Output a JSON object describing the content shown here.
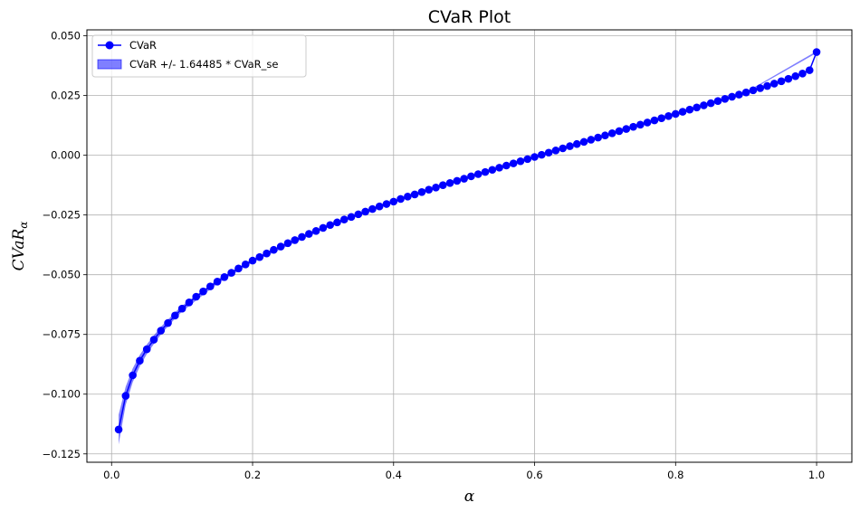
{
  "chart_data": {
    "type": "line",
    "title": "CVaR Plot",
    "xlabel": "α",
    "ylabel_main": "CVaR",
    "ylabel_sub": "α",
    "xlim": [
      -0.035,
      1.05
    ],
    "ylim": [
      -0.1285,
      0.0525
    ],
    "xticks": [
      0.0,
      0.2,
      0.4,
      0.6,
      0.8,
      1.0
    ],
    "xtick_labels": [
      "0.0",
      "0.2",
      "0.4",
      "0.6",
      "0.8",
      "1.0"
    ],
    "yticks": [
      -0.125,
      -0.1,
      -0.075,
      -0.05,
      -0.025,
      0.0,
      0.025,
      0.05
    ],
    "ytick_labels": [
      "−0.125",
      "−0.100",
      "−0.075",
      "−0.050",
      "−0.025",
      "0.000",
      "0.025",
      "0.050"
    ],
    "grid": true,
    "legend_position": "top-left",
    "series": [
      {
        "name": "CVaR",
        "color": "#0000ff",
        "marker": "circle",
        "x": [
          0.01,
          0.02,
          0.03,
          0.04,
          0.05,
          0.06,
          0.07,
          0.08,
          0.09,
          0.1,
          0.11,
          0.12,
          0.13,
          0.14,
          0.15,
          0.16,
          0.17,
          0.18,
          0.19,
          0.2,
          0.21,
          0.22,
          0.23,
          0.24,
          0.25,
          0.26,
          0.27,
          0.28,
          0.29,
          0.3,
          0.31,
          0.32,
          0.33,
          0.34,
          0.35,
          0.36,
          0.37,
          0.38,
          0.39,
          0.4,
          0.41,
          0.42,
          0.43,
          0.44,
          0.45,
          0.46,
          0.47,
          0.48,
          0.49,
          0.5,
          0.51,
          0.52,
          0.53,
          0.54,
          0.55,
          0.56,
          0.57,
          0.58,
          0.59,
          0.6,
          0.61,
          0.62,
          0.63,
          0.64,
          0.65,
          0.66,
          0.67,
          0.68,
          0.69,
          0.7,
          0.71,
          0.72,
          0.73,
          0.74,
          0.75,
          0.76,
          0.77,
          0.78,
          0.79,
          0.8,
          0.81,
          0.82,
          0.83,
          0.84,
          0.85,
          0.86,
          0.87,
          0.88,
          0.89,
          0.9,
          0.91,
          0.92,
          0.93,
          0.94,
          0.95,
          0.96,
          0.97,
          0.98,
          0.99,
          1.0
        ],
        "y": [
          -0.1148,
          -0.1007,
          -0.0921,
          -0.086,
          -0.0812,
          -0.0772,
          -0.0734,
          -0.0702,
          -0.0671,
          -0.0642,
          -0.0616,
          -0.0592,
          -0.057,
          -0.0549,
          -0.0529,
          -0.051,
          -0.0492,
          -0.0474,
          -0.0457,
          -0.0441,
          -0.0426,
          -0.0411,
          -0.0396,
          -0.0382,
          -0.0368,
          -0.0355,
          -0.0342,
          -0.0329,
          -0.0317,
          -0.0304,
          -0.0292,
          -0.0281,
          -0.0269,
          -0.0258,
          -0.0247,
          -0.0236,
          -0.0225,
          -0.0214,
          -0.0204,
          -0.0194,
          -0.0183,
          -0.0173,
          -0.0164,
          -0.0154,
          -0.0144,
          -0.0135,
          -0.0125,
          -0.0116,
          -0.0107,
          -0.0098,
          -0.0088,
          -0.0079,
          -0.007,
          -0.0061,
          -0.0052,
          -0.0043,
          -0.0034,
          -0.0025,
          -0.0016,
          -0.0007,
          0.0002,
          0.0011,
          0.002,
          0.0029,
          0.0038,
          0.0047,
          0.0056,
          0.0065,
          0.0074,
          0.0083,
          0.0092,
          0.0101,
          0.011,
          0.0119,
          0.0128,
          0.0137,
          0.0146,
          0.0155,
          0.0164,
          0.0173,
          0.0182,
          0.0191,
          0.02,
          0.0209,
          0.0218,
          0.0227,
          0.0236,
          0.0245,
          0.0254,
          0.0263,
          0.0272,
          0.0281,
          0.029,
          0.03,
          0.031,
          0.032,
          0.0331,
          0.0342,
          0.0356,
          0.0432
        ]
      },
      {
        "name": "CVaR +/- 1.64485 * CVaR_se",
        "type": "band",
        "color": "#0000ff",
        "opacity": 0.5,
        "x": [
          0.01,
          0.02,
          0.03,
          0.04,
          0.05,
          0.06,
          0.07,
          0.08,
          0.09,
          0.1,
          0.15,
          0.2,
          0.3,
          0.4,
          0.5,
          0.6,
          0.7,
          0.8,
          0.9,
          1.0
        ],
        "lower": [
          -0.121,
          -0.1045,
          -0.095,
          -0.0884,
          -0.0832,
          -0.079,
          -0.075,
          -0.0716,
          -0.0684,
          -0.0654,
          -0.0538,
          -0.0448,
          -0.031,
          -0.0198,
          -0.0101,
          -0.0009,
          0.0081,
          0.0171,
          0.0261,
          0.0428
        ],
        "upper": [
          -0.1086,
          -0.0969,
          -0.0892,
          -0.0836,
          -0.0792,
          -0.0754,
          -0.0718,
          -0.0688,
          -0.0658,
          -0.063,
          -0.052,
          -0.0434,
          -0.0298,
          -0.019,
          -0.0095,
          -0.0005,
          0.0085,
          0.0175,
          0.0265,
          0.0436
        ]
      }
    ]
  }
}
